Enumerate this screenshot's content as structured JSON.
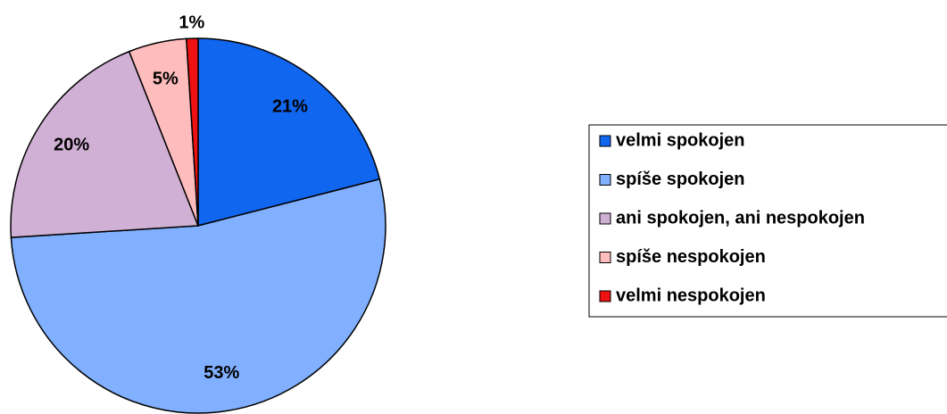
{
  "chart_data": {
    "type": "pie",
    "categories": [
      "velmi spokojen",
      "spíše spokojen",
      "ani spokojen, ani nespokojen",
      "spíše nespokojen",
      "velmi nespokojen"
    ],
    "values": [
      21,
      53,
      20,
      5,
      1
    ],
    "value_labels": [
      "21%",
      "53%",
      "20%",
      "5%",
      "1%"
    ],
    "colors": [
      "#1166f0",
      "#80b0ff",
      "#d0b0d4",
      "#ffbcbc",
      "#ee1111"
    ],
    "legend": "right"
  }
}
